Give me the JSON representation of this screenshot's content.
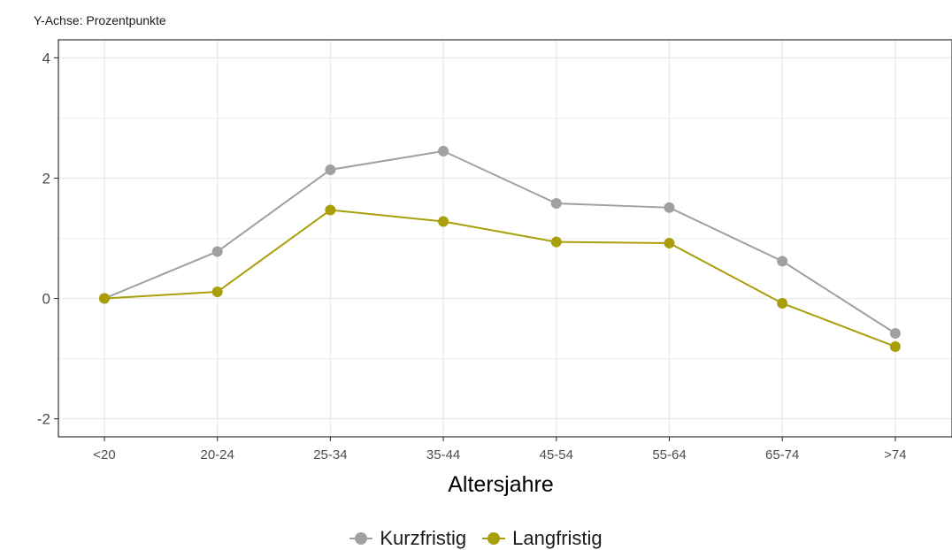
{
  "header": {
    "yaxis_note": "Y-Achse: Prozentpunkte"
  },
  "chart_data": {
    "type": "line",
    "categories": [
      "<20",
      "20-24",
      "25-34",
      "35-44",
      "45-54",
      "55-64",
      "65-74",
      ">74"
    ],
    "xlabel": "Altersjahre",
    "ylabel": "",
    "ylim": [
      -2.3,
      4.3
    ],
    "yticks": [
      -2,
      0,
      2,
      4
    ],
    "grid": true,
    "legend_position": "bottom",
    "series": [
      {
        "name": "Kurzfristig",
        "color": "#a0a0a0",
        "values": [
          0.0,
          0.78,
          2.14,
          2.45,
          1.58,
          1.51,
          0.62,
          -0.58
        ]
      },
      {
        "name": "Langfristig",
        "color": "#a89f0a",
        "values": [
          0.0,
          0.11,
          1.47,
          1.28,
          0.94,
          0.92,
          -0.08,
          -0.8
        ]
      }
    ]
  }
}
